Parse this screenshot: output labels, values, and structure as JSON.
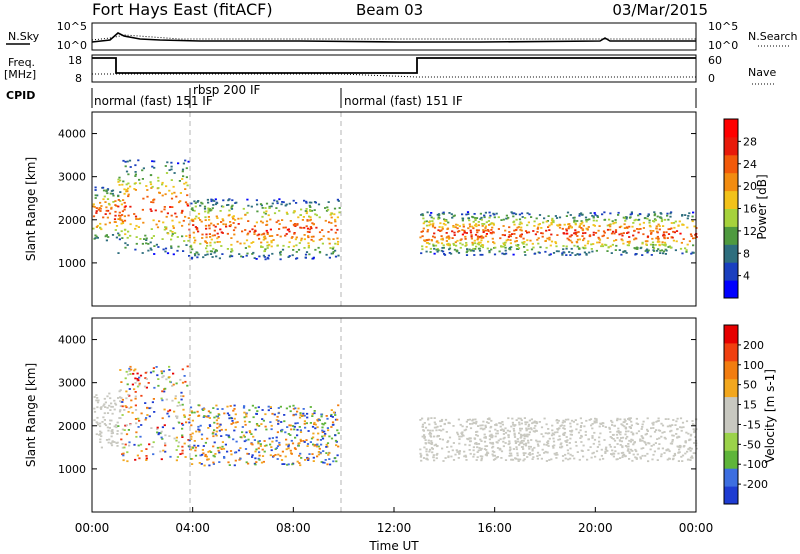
{
  "header": {
    "station": "Fort Hays East (fitACF)",
    "beam": "Beam 03",
    "date": "03/Mar/2015"
  },
  "top_panels": {
    "nsky": {
      "left_label": "N.Sky",
      "right_label": "N.Search",
      "left_ticks": [
        "10^5",
        "10^0"
      ],
      "right_ticks": [
        "10^5",
        "10^0"
      ]
    },
    "freq": {
      "left_label_1": "Freq.",
      "left_label_2": "[MHz]",
      "right_label": "Nave",
      "left_ticks": [
        "18",
        "8"
      ],
      "right_ticks": [
        "60",
        "0"
      ]
    },
    "cpid": {
      "label": "CPID",
      "modes": [
        "normal (fast) 151 IF",
        "rbsp 200 IF",
        "normal (fast) 151 IF"
      ]
    }
  },
  "chart_data": [
    {
      "type": "heatmap",
      "name": "power",
      "xlabel": "",
      "ylabel": "Slant Range [km]",
      "xlim": [
        0,
        24
      ],
      "ylim": [
        0,
        4500
      ],
      "yticks": [
        "1000",
        "2000",
        "3000",
        "4000"
      ],
      "colorbar": {
        "label": "Power [dB]",
        "ticks": [
          "28",
          "24",
          "20",
          "16",
          "12",
          "8",
          "4"
        ],
        "colors": [
          "#0000ff",
          "#1a3fbf",
          "#2e6e7e",
          "#4f9a3f",
          "#a6d23c",
          "#f2c21a",
          "#f28c10",
          "#f25a0a",
          "#e81a0a",
          "#ff0000"
        ]
      },
      "echo_regions": [
        {
          "t": [
            0.0,
            1.2
          ],
          "r": [
            1500,
            2800
          ]
        },
        {
          "t": [
            1.0,
            3.8
          ],
          "r": [
            1200,
            3400
          ]
        },
        {
          "t": [
            3.8,
            9.8
          ],
          "r": [
            1100,
            2500
          ]
        },
        {
          "t": [
            13.0,
            24.0
          ],
          "r": [
            1200,
            2200
          ]
        }
      ]
    },
    {
      "type": "heatmap",
      "name": "velocity",
      "xlabel": "Time UT",
      "ylabel": "Slant Range [km]",
      "xlim": [
        0,
        24
      ],
      "ylim": [
        0,
        4500
      ],
      "xticks": [
        "00:00",
        "04:00",
        "08:00",
        "12:00",
        "16:00",
        "20:00",
        "00:00"
      ],
      "yticks": [
        "1000",
        "2000",
        "3000",
        "4000"
      ],
      "colorbar": {
        "label": "Velocity [m s-1]",
        "ticks": [
          "200",
          "100",
          "50",
          "15",
          "-15",
          "-50",
          "-100",
          "-200"
        ],
        "colors": [
          "#1e3cd2",
          "#3d6ee0",
          "#5fb53a",
          "#9bd24a",
          "#c8c8c0",
          "#c8c8c0",
          "#f2a71e",
          "#f27d10",
          "#f04010",
          "#e60000"
        ]
      },
      "echo_regions": [
        {
          "t": [
            0.0,
            1.2
          ],
          "r": [
            1500,
            2800
          ],
          "v": "ground"
        },
        {
          "t": [
            1.0,
            3.8
          ],
          "r": [
            1200,
            3400
          ],
          "v": "mixed"
        },
        {
          "t": [
            3.8,
            9.8
          ],
          "r": [
            1100,
            2500
          ],
          "v": "positive"
        },
        {
          "t": [
            13.0,
            24.0
          ],
          "r": [
            1200,
            2200
          ],
          "v": "ground"
        }
      ]
    }
  ]
}
